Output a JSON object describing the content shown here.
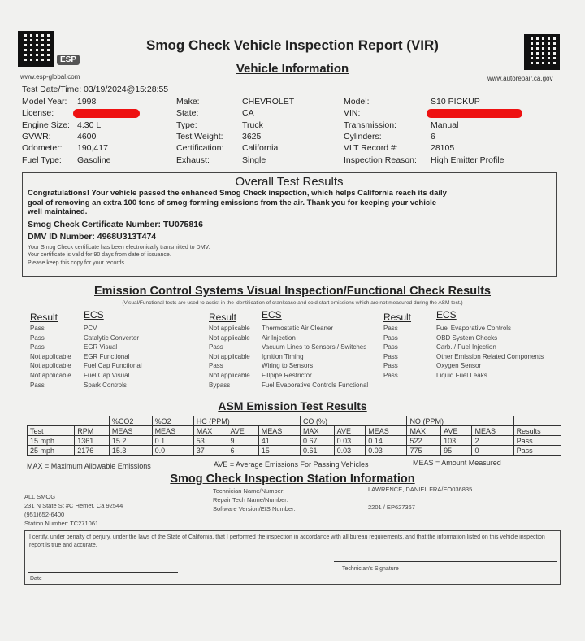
{
  "header": {
    "title": "Smog Check Vehicle Inspection Report (VIR)",
    "logo": "ESP",
    "left_url": "www.esp-global.com",
    "right_url": "www.autorepair.ca.gov"
  },
  "vehicle": {
    "heading": "Vehicle Information",
    "test_datetime": "Test Date/Time: 03/19/2024@15:28:55",
    "fields": [
      [
        {
          "label": "Model Year:",
          "value": "1998"
        },
        {
          "label": "Make:",
          "value": "CHEVROLET"
        },
        {
          "label": "Model:",
          "value": "S10 PICKUP"
        }
      ],
      [
        {
          "label": "License:",
          "value": ""
        },
        {
          "label": "State:",
          "value": "CA"
        },
        {
          "label": "VIN:",
          "value": ""
        }
      ],
      [
        {
          "label": "Engine Size:",
          "value": "4.30 L"
        },
        {
          "label": "Type:",
          "value": "Truck"
        },
        {
          "label": "Transmission:",
          "value": "Manual"
        }
      ],
      [
        {
          "label": "GVWR:",
          "value": "4600"
        },
        {
          "label": "Test Weight:",
          "value": "3625"
        },
        {
          "label": "Cylinders:",
          "value": "6"
        }
      ],
      [
        {
          "label": "Odometer:",
          "value": "190,417"
        },
        {
          "label": "Certification:",
          "value": "California"
        },
        {
          "label": "VLT Record #:",
          "value": "28105"
        }
      ],
      [
        {
          "label": "Fuel Type:",
          "value": "Gasoline"
        },
        {
          "label": "Exhaust:",
          "value": "Single"
        },
        {
          "label": "Inspection Reason:",
          "value": "High Emitter Profile"
        }
      ]
    ],
    "redaction_color": "#ee1111"
  },
  "overall": {
    "heading": "Overall Test Results",
    "message": "Congratulations! Your vehicle passed the enhanced Smog Check inspection, which helps California reach its daily goal of removing an extra 100 tons of smog-forming emissions from the air. Thank you for keeping your vehicle well maintained.",
    "certificate": "Smog Check Certificate Number: TU075816",
    "dmv_id": "DMV ID Number: 4968U313T474",
    "notes": [
      "Your Smog Check certificate has been electronically transmitted to DMV.",
      "Your certificate is valid for 90 days from date of issuance.",
      "Please keep this copy for your records."
    ]
  },
  "ecs": {
    "heading": "Emission Control Systems Visual Inspection/Functional Check Results",
    "note": "(Visual/Functional tests are used to assist in the identification of crankcase and cold start emissions which are not measured during the ASM test.)",
    "result_label": "Result",
    "ecs_label": "ECS",
    "columns": [
      [
        [
          "Pass",
          "PCV"
        ],
        [
          "Pass",
          "Catalytic Converter"
        ],
        [
          "Pass",
          "EGR Visual"
        ],
        [
          "Not applicable",
          "EGR Functional"
        ],
        [
          "Not applicable",
          "Fuel Cap Functional"
        ],
        [
          "Not applicable",
          "Fuel Cap Visual"
        ],
        [
          "Pass",
          "Spark Controls"
        ]
      ],
      [
        [
          "Not applicable",
          "Thermostatic Air Cleaner"
        ],
        [
          "Not applicable",
          "Air Injection"
        ],
        [
          "Pass",
          "Vacuum Lines to Sensors / Switches"
        ],
        [
          "Not applicable",
          "Ignition Timing"
        ],
        [
          "Pass",
          "Wiring to Sensors"
        ],
        [
          "Not applicable",
          "Fillpipe Restrictor"
        ],
        [
          "Bypass",
          "Fuel Evaporative Controls Functional"
        ]
      ],
      [
        [
          "Pass",
          "Fuel Evaporative Controls"
        ],
        [
          "Pass",
          "OBD System Checks"
        ],
        [
          "Pass",
          "Carb. / Fuel Injection"
        ],
        [
          "Pass",
          "Other Emission Related Components"
        ],
        [
          "Pass",
          "Oxygen Sensor"
        ],
        [
          "Pass",
          "Liquid Fuel Leaks"
        ]
      ]
    ]
  },
  "asm": {
    "heading": "ASM Emission Test Results",
    "groups": [
      "%CO2",
      "%O2",
      "HC (PPM)",
      "CO (%)",
      "NO (PPM)"
    ],
    "columns": [
      "Test",
      "RPM",
      "MEAS",
      "MEAS",
      "MAX",
      "AVE",
      "MEAS",
      "MAX",
      "AVE",
      "MEAS",
      "MAX",
      "AVE",
      "MEAS",
      "Results"
    ],
    "rows": [
      [
        "15 mph",
        "1361",
        "15.2",
        "0.1",
        "53",
        "9",
        "41",
        "0.67",
        "0.03",
        "0.14",
        "522",
        "103",
        "2",
        "Pass"
      ],
      [
        "25 mph",
        "2176",
        "15.3",
        "0.0",
        "37",
        "6",
        "15",
        "0.61",
        "0.03",
        "0.03",
        "775",
        "95",
        "0",
        "Pass"
      ]
    ],
    "legend": [
      "MAX = Maximum Allowable Emissions",
      "AVE = Average Emissions For Passing Vehicles",
      "MEAS = Amount Measured"
    ]
  },
  "station": {
    "heading": "Smog Check Inspection Station Information",
    "address": [
      "ALL SMOG",
      "231 N State St #C Hemet, Ca 92544",
      "(951)652-6400",
      "Station Number: TC271061"
    ],
    "labels": [
      "Technician Name/Number:",
      "Repair Tech Name/Number:",
      "Software Version/EIS Number:"
    ],
    "values": [
      "LAWRENCE, DANIEL FRA/EO036835",
      "",
      "2201 / EP627367"
    ]
  },
  "certification": {
    "text": "I certify, under penalty of perjury, under the laws of the State of California, that I performed the inspection in accordance with all bureau requirements, and that the information listed on this vehicle inspection report is true and accurate.",
    "signature_label": "Technician's Signature",
    "date_label": "Date"
  }
}
